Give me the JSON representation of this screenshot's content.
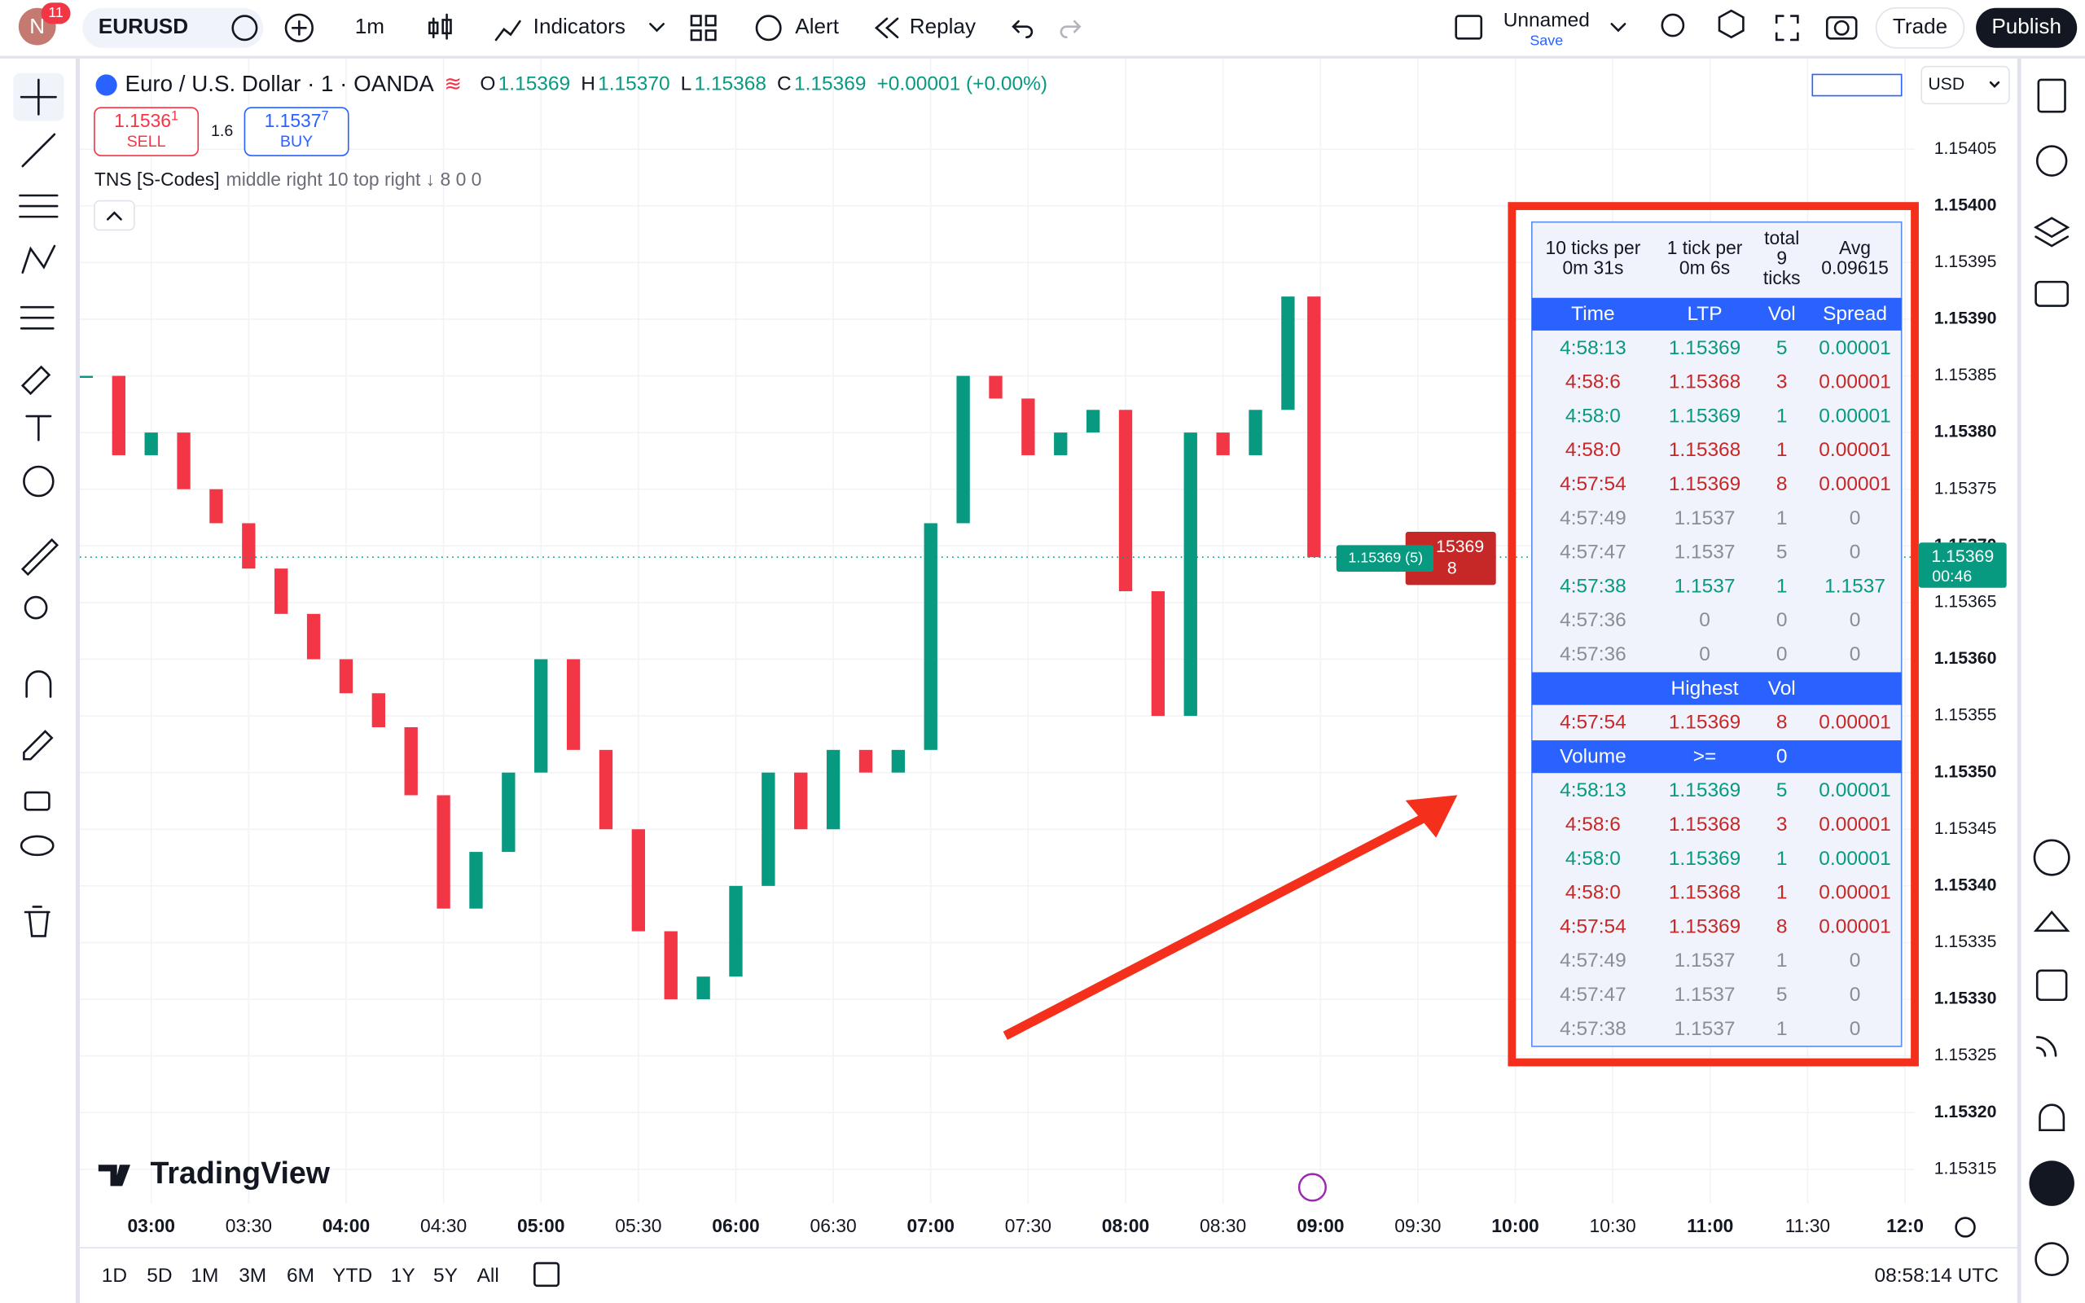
{
  "top_bar": {
    "avatar": "N",
    "notifications": "11",
    "symbol": "EURUSD",
    "interval": "1m",
    "indicators": "Indicators",
    "alert": "Alert",
    "replay": "Replay",
    "layout_name": "Unnamed",
    "save": "Save",
    "trade": "Trade",
    "publish": "Publish"
  },
  "legend": {
    "title": "Euro / U.S. Dollar · 1 · OANDA",
    "ohlc": [
      {
        "key": "O",
        "value": "1.15369"
      },
      {
        "key": "H",
        "value": "1.15370"
      },
      {
        "key": "L",
        "value": "1.15368"
      },
      {
        "key": "C",
        "value": "1.15369"
      }
    ],
    "change": "+0.00001 (+0.00%)",
    "sell": {
      "price": "1.1536",
      "pip": "1",
      "label": "SELL"
    },
    "spread": "1.6",
    "buy": {
      "price": "1.1537",
      "pip": "7",
      "label": "BUY"
    },
    "indicator": "TNS [S-Codes]",
    "indicator_params": "middle right 10 top right ↓ 8 0 0"
  },
  "currency": "USD",
  "watermark": "TradingView",
  "chart": {
    "type": "candlestick",
    "times": [
      "02:40",
      "02:50",
      "03:00",
      "03:10",
      "03:20",
      "03:30",
      "03:40",
      "03:50",
      "04:00",
      "04:10",
      "04:20",
      "04:30",
      "04:40",
      "04:50",
      "05:00",
      "05:10",
      "05:20",
      "05:30",
      "05:40",
      "05:50",
      "06:00",
      "06:10",
      "06:20",
      "06:30",
      "06:40",
      "06:50",
      "07:00",
      "07:10",
      "07:20",
      "07:30",
      "07:40",
      "07:50",
      "08:00",
      "08:10",
      "08:20",
      "08:30",
      "08:40",
      "08:50",
      "08:58"
    ],
    "closes": [
      1.15385,
      1.15378,
      1.1538,
      1.15375,
      1.15372,
      1.15368,
      1.15364,
      1.1536,
      1.15357,
      1.15354,
      1.15348,
      1.15338,
      1.15343,
      1.1535,
      1.1536,
      1.15352,
      1.15345,
      1.15336,
      1.1533,
      1.15332,
      1.1534,
      1.1535,
      1.15345,
      1.15352,
      1.1535,
      1.15352,
      1.15372,
      1.15385,
      1.15383,
      1.15378,
      1.1538,
      1.15382,
      1.15366,
      1.15355,
      1.1538,
      1.15378,
      1.15382,
      1.15392,
      1.15369
    ],
    "up_color": "#089981",
    "down_color": "#f23645",
    "xlim": [
      "02:38",
      "12:03"
    ],
    "ylim": [
      1.15312,
      1.15413
    ],
    "xticks": [
      "03:00",
      "03:30",
      "04:00",
      "04:30",
      "05:00",
      "05:30",
      "06:00",
      "06:30",
      "07:00",
      "07:30",
      "08:00",
      "08:30",
      "09:00",
      "09:30",
      "10:00",
      "10:30",
      "11:00",
      "11:30",
      "12:0"
    ],
    "yticks": [
      {
        "value": 1.15405,
        "label": "1.15405"
      },
      {
        "value": 1.154,
        "label": "1.15400"
      },
      {
        "value": 1.15395,
        "label": "1.15395"
      },
      {
        "value": 1.1539,
        "label": "1.15390"
      },
      {
        "value": 1.15385,
        "label": "1.15385"
      },
      {
        "value": 1.1538,
        "label": "1.15380"
      },
      {
        "value": 1.15375,
        "label": "1.15375"
      },
      {
        "value": 1.1537,
        "label": "1.15370"
      },
      {
        "value": 1.15365,
        "label": "1.15365"
      },
      {
        "value": 1.1536,
        "label": "1.15360"
      },
      {
        "value": 1.15355,
        "label": "1.15355"
      },
      {
        "value": 1.1535,
        "label": "1.15350"
      },
      {
        "value": 1.15345,
        "label": "1.15345"
      },
      {
        "value": 1.1534,
        "label": "1.15340"
      },
      {
        "value": 1.15335,
        "label": "1.15335"
      },
      {
        "value": 1.1533,
        "label": "1.15330"
      },
      {
        "value": 1.15325,
        "label": "1.15325"
      },
      {
        "value": 1.1532,
        "label": "1.15320"
      },
      {
        "value": 1.15315,
        "label": "1.15315"
      }
    ],
    "last_price": {
      "value": 1.15369,
      "label": "1.15369",
      "countdown": "00:46"
    },
    "grid": true
  },
  "overlay": {
    "tag_price": "1.15369 (5)",
    "box_price": "15369",
    "box_vol": "8"
  },
  "range_buttons": [
    "1D",
    "5D",
    "1M",
    "3M",
    "6M",
    "YTD",
    "1Y",
    "5Y",
    "All"
  ],
  "clock": "08:58:14 UTC",
  "tns_table": {
    "summary": [
      [
        "10 ticks per",
        "0m 31s"
      ],
      [
        "1 tick per",
        "0m 6s"
      ],
      [
        "total",
        "9",
        "ticks"
      ],
      [
        "Avg",
        "0.09615"
      ]
    ],
    "columns": [
      "Time",
      "LTP",
      "Vol",
      "Spread"
    ],
    "rows": [
      {
        "time": "4:58:13",
        "ltp": "1.15369",
        "vol": "5",
        "spread": "0.00001",
        "color": "green"
      },
      {
        "time": "4:58:6",
        "ltp": "1.15368",
        "vol": "3",
        "spread": "0.00001",
        "color": "red"
      },
      {
        "time": "4:58:0",
        "ltp": "1.15369",
        "vol": "1",
        "spread": "0.00001",
        "color": "green"
      },
      {
        "time": "4:58:0",
        "ltp": "1.15368",
        "vol": "1",
        "spread": "0.00001",
        "color": "red"
      },
      {
        "time": "4:57:54",
        "ltp": "1.15369",
        "vol": "8",
        "spread": "0.00001",
        "color": "red"
      },
      {
        "time": "4:57:49",
        "ltp": "1.1537",
        "vol": "1",
        "spread": "0",
        "color": "gray"
      },
      {
        "time": "4:57:47",
        "ltp": "1.1537",
        "vol": "5",
        "spread": "0",
        "color": "gray"
      },
      {
        "time": "4:57:38",
        "ltp": "1.1537",
        "vol": "1",
        "spread": "1.1537",
        "color": "green"
      },
      {
        "time": "4:57:36",
        "ltp": "0",
        "vol": "0",
        "spread": "0",
        "color": "gray"
      },
      {
        "time": "4:57:36",
        "ltp": "0",
        "vol": "0",
        "spread": "0",
        "color": "gray"
      }
    ],
    "highest_header": [
      null,
      "Highest",
      "Vol",
      null
    ],
    "highest_rows": [
      {
        "time": "4:57:54",
        "ltp": "1.15369",
        "vol": "8",
        "spread": "0.00001",
        "color": "red"
      }
    ],
    "volume_header": [
      "Volume",
      ">=",
      "0",
      null
    ],
    "volume_rows": [
      {
        "time": "4:58:13",
        "ltp": "1.15369",
        "vol": "5",
        "spread": "0.00001",
        "color": "green"
      },
      {
        "time": "4:58:6",
        "ltp": "1.15368",
        "vol": "3",
        "spread": "0.00001",
        "color": "red"
      },
      {
        "time": "4:58:0",
        "ltp": "1.15369",
        "vol": "1",
        "spread": "0.00001",
        "color": "green"
      },
      {
        "time": "4:58:0",
        "ltp": "1.15368",
        "vol": "1",
        "spread": "0.00001",
        "color": "red"
      },
      {
        "time": "4:57:54",
        "ltp": "1.15369",
        "vol": "8",
        "spread": "0.00001",
        "color": "red"
      },
      {
        "time": "4:57:49",
        "ltp": "1.1537",
        "vol": "1",
        "spread": "0",
        "color": "gray"
      },
      {
        "time": "4:57:47",
        "ltp": "1.1537",
        "vol": "5",
        "spread": "0",
        "color": "gray"
      },
      {
        "time": "4:57:38",
        "ltp": "1.1537",
        "vol": "1",
        "spread": "0",
        "color": "gray"
      }
    ]
  }
}
